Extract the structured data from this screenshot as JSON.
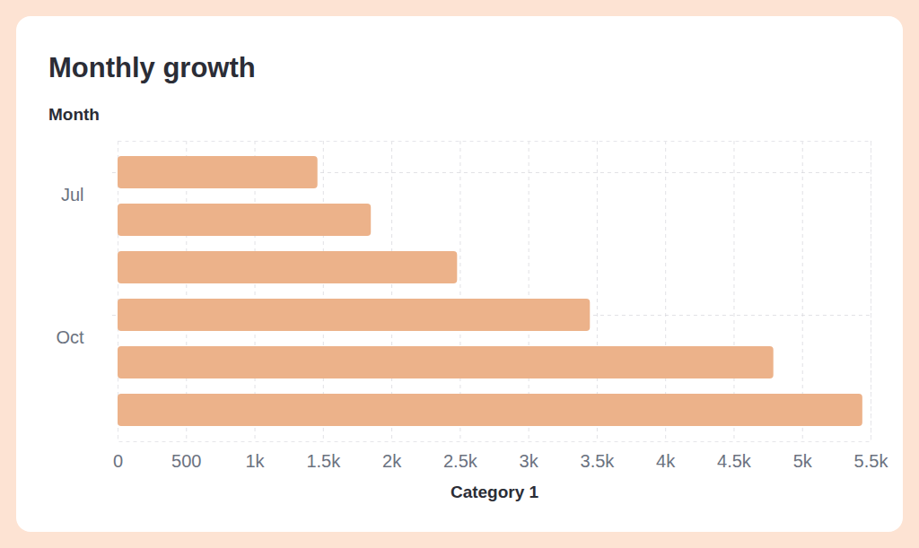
{
  "chart_data": {
    "type": "bar",
    "orientation": "horizontal",
    "title": "Monthly growth",
    "y_label": "Month",
    "x_label": "Category 1",
    "categories": [
      "Jul",
      null,
      null,
      "Oct",
      null,
      null
    ],
    "values": [
      1460,
      1850,
      2480,
      3450,
      4790,
      5440
    ],
    "color": "#ecb28a",
    "xlim": [
      0,
      5500
    ],
    "xticks": [
      0,
      500,
      {
        "value": 1000,
        "label": "1k"
      },
      {
        "value": 1500,
        "label": "1.5k"
      },
      {
        "value": 2000,
        "label": "2k"
      },
      {
        "value": 2500,
        "label": "2.5k"
      },
      {
        "value": 3000,
        "label": "3k"
      },
      {
        "value": 3500,
        "label": "3.5k"
      },
      {
        "value": 4000,
        "label": "4k"
      },
      {
        "value": 4500,
        "label": "4.5k"
      },
      {
        "value": 5000,
        "label": "5k"
      },
      {
        "value": 5500,
        "label": "5.5k"
      }
    ],
    "grid": true
  }
}
